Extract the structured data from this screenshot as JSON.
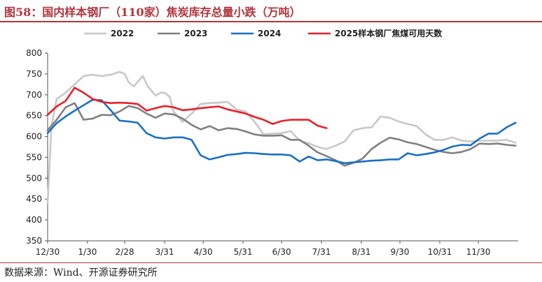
{
  "title": "图58：国内样本钢厂（110家）焦炭库存总量小跌（万吨）",
  "source": "数据来源：Wind、开源证券研究所",
  "chart_data": {
    "type": "line",
    "title": "图58：国内样本钢厂（110家）焦炭库存总量小跌（万吨）",
    "xlabel": "",
    "ylabel": "",
    "ylim": [
      350,
      800
    ],
    "yticks": [
      350,
      400,
      450,
      500,
      550,
      600,
      650,
      700,
      750,
      800
    ],
    "x_tick_labels": [
      "12/30",
      "1/30",
      "2/28",
      "3/31",
      "4/30",
      "5/31",
      "6/30",
      "7/31",
      "8/31",
      "9/30",
      "10/31",
      "11/30"
    ],
    "x_tick_days": [
      0,
      31,
      60,
      91,
      121,
      152,
      182,
      213,
      244,
      274,
      305,
      335
    ],
    "x_range_days": [
      0,
      366
    ],
    "grid": false,
    "legend_position": "top",
    "series": [
      {
        "name": "2022",
        "color": "#c8c8c8",
        "x": [
          0,
          3,
          7,
          14,
          21,
          28,
          35,
          42,
          49,
          56,
          60,
          63,
          67,
          74,
          78,
          84,
          88,
          91,
          95,
          98,
          105,
          112,
          119,
          126,
          133,
          140,
          147,
          154,
          161,
          168,
          175,
          182,
          189,
          196,
          203,
          210,
          217,
          224,
          231,
          238,
          245,
          252,
          259,
          266,
          273,
          280,
          287,
          294,
          301,
          308,
          315,
          322,
          329,
          336,
          343,
          350,
          357,
          364
        ],
        "y": [
          440,
          625,
          690,
          705,
          725,
          745,
          748,
          745,
          748,
          755,
          750,
          730,
          720,
          745,
          720,
          698,
          705,
          705,
          695,
          660,
          635,
          655,
          678,
          680,
          681,
          683,
          665,
          660,
          635,
          605,
          607,
          608,
          613,
          590,
          584,
          575,
          570,
          578,
          588,
          615,
          620,
          622,
          648,
          645,
          636,
          630,
          625,
          605,
          592,
          592,
          598,
          590,
          588,
          590,
          590,
          590,
          592,
          585
        ]
      },
      {
        "name": "2023",
        "color": "#808080",
        "x": [
          0,
          7,
          14,
          21,
          28,
          35,
          42,
          49,
          56,
          63,
          70,
          77,
          84,
          91,
          98,
          105,
          112,
          119,
          126,
          133,
          140,
          147,
          154,
          161,
          168,
          175,
          182,
          189,
          196,
          203,
          210,
          217,
          224,
          231,
          238,
          245,
          252,
          259,
          266,
          273,
          280,
          287,
          294,
          301,
          308,
          315,
          322,
          329,
          336,
          343,
          350,
          357,
          364
        ],
        "y": [
          615,
          640,
          670,
          680,
          640,
          643,
          652,
          651,
          660,
          673,
          668,
          655,
          645,
          655,
          653,
          643,
          628,
          617,
          625,
          615,
          620,
          618,
          612,
          605,
          602,
          602,
          603,
          592,
          592,
          578,
          562,
          553,
          543,
          530,
          537,
          547,
          570,
          585,
          597,
          593,
          586,
          582,
          575,
          568,
          563,
          560,
          563,
          570,
          583,
          582,
          583,
          580,
          578
        ]
      },
      {
        "name": "2024",
        "color": "#1b6fc4",
        "x": [
          0,
          7,
          14,
          21,
          28,
          35,
          42,
          49,
          56,
          63,
          70,
          77,
          84,
          91,
          98,
          105,
          112,
          119,
          126,
          133,
          140,
          147,
          154,
          161,
          168,
          175,
          182,
          189,
          196,
          203,
          210,
          217,
          224,
          231,
          238,
          245,
          252,
          259,
          266,
          273,
          280,
          287,
          294,
          301,
          308,
          315,
          322,
          329,
          336,
          343,
          350,
          357,
          364
        ],
        "y": [
          608,
          632,
          648,
          662,
          675,
          688,
          687,
          663,
          638,
          636,
          633,
          608,
          598,
          595,
          598,
          598,
          592,
          555,
          545,
          550,
          556,
          558,
          561,
          560,
          558,
          557,
          557,
          555,
          540,
          552,
          543,
          545,
          541,
          536,
          538,
          540,
          542,
          543,
          545,
          545,
          560,
          555,
          558,
          562,
          568,
          576,
          580,
          579,
          595,
          607,
          607,
          622,
          633
        ]
      },
      {
        "name": "2025样本钢厂焦煤可用天数",
        "color": "#e8202a",
        "x": [
          0,
          7,
          14,
          21,
          28,
          35,
          42,
          49,
          56,
          63,
          70,
          77,
          84,
          91,
          98,
          105,
          112,
          119,
          126,
          133,
          140,
          147,
          154,
          161,
          168,
          175,
          182,
          189,
          196,
          203,
          210,
          217
        ],
        "y": [
          652,
          672,
          685,
          717,
          705,
          690,
          683,
          680,
          681,
          680,
          678,
          662,
          668,
          673,
          670,
          663,
          665,
          668,
          670,
          672,
          665,
          660,
          655,
          647,
          640,
          630,
          637,
          640,
          640,
          640,
          626,
          620
        ]
      }
    ]
  }
}
